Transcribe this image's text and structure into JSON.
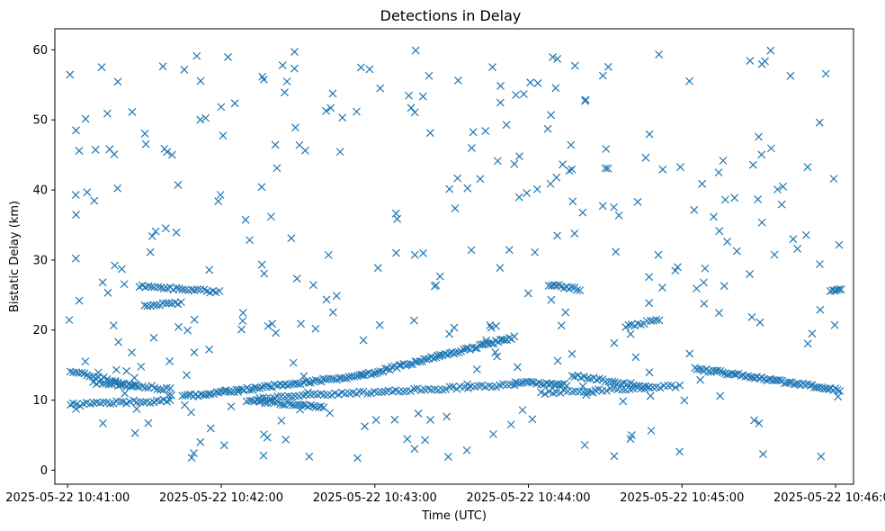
{
  "chart_data": {
    "type": "scatter",
    "title": "Detections in Delay",
    "xlabel": "Time (UTC)",
    "ylabel": "Bistatic Delay (km)",
    "marker": "x",
    "color": "#1f77b4",
    "xlim_seconds": [
      -5,
      307
    ],
    "ylim": [
      -2,
      63
    ],
    "x_ticks": [
      {
        "seconds": 0,
        "label": "2025-05-22 10:41:00"
      },
      {
        "seconds": 60,
        "label": "2025-05-22 10:42:00"
      },
      {
        "seconds": 120,
        "label": "2025-05-22 10:43:00"
      },
      {
        "seconds": 180,
        "label": "2025-05-22 10:44:00"
      },
      {
        "seconds": 240,
        "label": "2025-05-22 10:45:00"
      },
      {
        "seconds": 300,
        "label": "2025-05-22 10:46:00"
      }
    ],
    "y_ticks": [
      0,
      10,
      20,
      30,
      40,
      50,
      60
    ],
    "tracks": [
      {
        "name": "track-a",
        "t_start": 1,
        "t_end": 28,
        "y_start": 14.2,
        "y_end": 11.8,
        "step": 1.1,
        "jitter": 0.25
      },
      {
        "name": "track-b",
        "t_start": 1,
        "t_end": 40,
        "y_start": 9.3,
        "y_end": 10.0,
        "step": 1.3,
        "jitter": 0.25
      },
      {
        "name": "track-c",
        "t_start": 10,
        "t_end": 40,
        "y_start": 12.5,
        "y_end": 11.6,
        "step": 1.2,
        "jitter": 0.25
      },
      {
        "name": "track-d",
        "t_start": 45,
        "t_end": 115,
        "y_start": 10.5,
        "y_end": 13.5,
        "step": 1.0,
        "jitter": 0.2
      },
      {
        "name": "track-e",
        "t_start": 75,
        "t_end": 175,
        "y_start": 10.3,
        "y_end": 12.2,
        "step": 1.4,
        "jitter": 0.2
      },
      {
        "name": "track-f",
        "t_start": 115,
        "t_end": 175,
        "y_start": 13.5,
        "y_end": 19.0,
        "step": 0.9,
        "jitter": 0.2
      },
      {
        "name": "track-g",
        "t_start": 70,
        "t_end": 100,
        "y_start": 10.0,
        "y_end": 9.0,
        "step": 1.0,
        "jitter": 0.2
      },
      {
        "name": "track-h",
        "t_start": 28,
        "t_end": 60,
        "y_start": 26.3,
        "y_end": 25.4,
        "step": 1.2,
        "jitter": 0.2
      },
      {
        "name": "track-i",
        "t_start": 30,
        "t_end": 45,
        "y_start": 23.6,
        "y_end": 23.8,
        "step": 1.2,
        "jitter": 0.2
      },
      {
        "name": "track-j",
        "t_start": 175,
        "t_end": 195,
        "y_start": 12.5,
        "y_end": 12.2,
        "step": 1.0,
        "jitter": 0.2
      },
      {
        "name": "track-k",
        "t_start": 185,
        "t_end": 240,
        "y_start": 11.0,
        "y_end": 12.0,
        "step": 1.5,
        "jitter": 0.2
      },
      {
        "name": "track-l",
        "t_start": 197,
        "t_end": 228,
        "y_start": 13.5,
        "y_end": 11.8,
        "step": 1.2,
        "jitter": 0.2
      },
      {
        "name": "track-m",
        "t_start": 188,
        "t_end": 200,
        "y_start": 26.5,
        "y_end": 25.8,
        "step": 1.0,
        "jitter": 0.2
      },
      {
        "name": "track-n",
        "t_start": 218,
        "t_end": 232,
        "y_start": 20.5,
        "y_end": 21.5,
        "step": 1.2,
        "jitter": 0.2
      },
      {
        "name": "track-o",
        "t_start": 245,
        "t_end": 302,
        "y_start": 14.5,
        "y_end": 11.4,
        "step": 0.9,
        "jitter": 0.2
      },
      {
        "name": "track-p",
        "t_start": 298,
        "t_end": 302,
        "y_start": 25.6,
        "y_end": 25.8,
        "step": 0.8,
        "jitter": 0.2
      }
    ],
    "noise": {
      "count": 330,
      "t_range": [
        0,
        302
      ],
      "y_range": [
        0,
        60
      ],
      "seed": 20250522
    }
  }
}
